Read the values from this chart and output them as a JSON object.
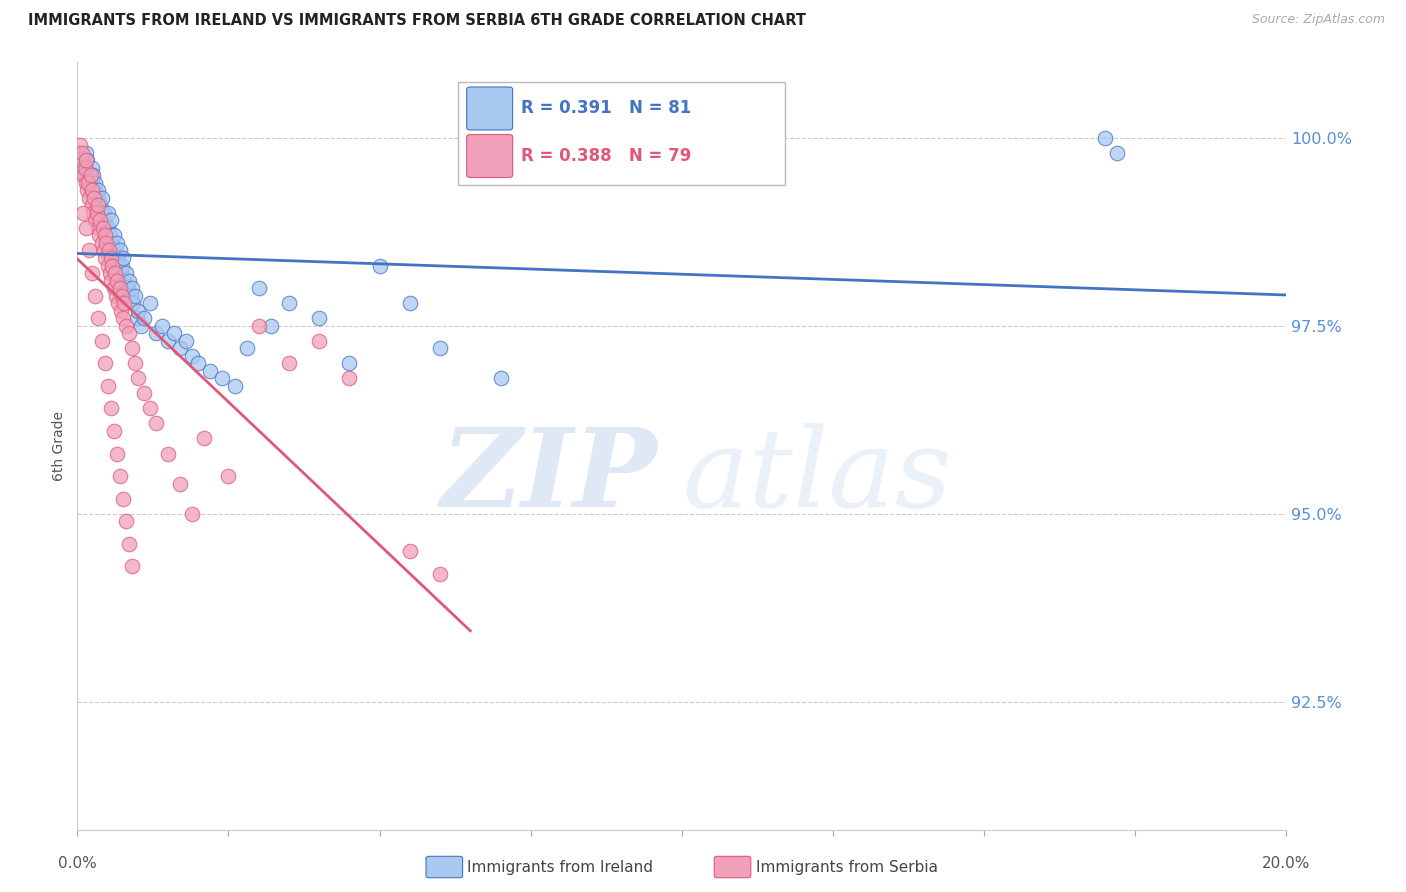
{
  "title": "IMMIGRANTS FROM IRELAND VS IMMIGRANTS FROM SERBIA 6TH GRADE CORRELATION CHART",
  "source": "Source: ZipAtlas.com",
  "ylabel": "6th Grade",
  "right_yticks": [
    92.5,
    95.0,
    97.5,
    100.0
  ],
  "right_ytick_labels": [
    "92.5%",
    "95.0%",
    "97.5%",
    "100.0%"
  ],
  "xlim": [
    0.0,
    20.0
  ],
  "ylim": [
    90.8,
    101.0
  ],
  "ireland_color": "#A8C8F0",
  "serbia_color": "#F0A0B8",
  "ireland_line_color": "#4472C4",
  "serbia_line_color": "#E05878",
  "watermark_zip_color": "#C5D8F0",
  "watermark_atlas_color": "#C5D8F0",
  "ireland_x": [
    0.05,
    0.08,
    0.1,
    0.12,
    0.14,
    0.15,
    0.16,
    0.18,
    0.2,
    0.22,
    0.24,
    0.25,
    0.26,
    0.28,
    0.3,
    0.3,
    0.32,
    0.34,
    0.35,
    0.36,
    0.38,
    0.4,
    0.4,
    0.42,
    0.44,
    0.45,
    0.46,
    0.48,
    0.5,
    0.5,
    0.52,
    0.54,
    0.55,
    0.56,
    0.58,
    0.6,
    0.62,
    0.64,
    0.65,
    0.66,
    0.68,
    0.7,
    0.72,
    0.74,
    0.75,
    0.78,
    0.8,
    0.82,
    0.85,
    0.88,
    0.9,
    0.92,
    0.95,
    0.98,
    1.0,
    1.05,
    1.1,
    1.2,
    1.3,
    1.4,
    1.5,
    1.6,
    1.7,
    1.8,
    1.9,
    2.0,
    2.2,
    2.4,
    2.6,
    2.8,
    3.0,
    3.2,
    3.5,
    4.0,
    4.5,
    5.0,
    5.5,
    6.0,
    7.0,
    17.0,
    17.2
  ],
  "ireland_y": [
    99.8,
    99.6,
    99.7,
    99.5,
    99.8,
    99.6,
    99.7,
    99.4,
    99.5,
    99.3,
    99.6,
    99.4,
    99.5,
    99.2,
    99.3,
    99.4,
    99.1,
    99.2,
    99.3,
    99.0,
    99.1,
    99.0,
    99.2,
    98.9,
    99.0,
    98.8,
    98.9,
    98.7,
    98.8,
    99.0,
    98.6,
    98.7,
    98.9,
    98.5,
    98.6,
    98.7,
    98.5,
    98.4,
    98.6,
    98.3,
    98.4,
    98.5,
    98.2,
    98.3,
    98.4,
    98.1,
    98.2,
    98.0,
    98.1,
    97.9,
    98.0,
    97.8,
    97.9,
    97.6,
    97.7,
    97.5,
    97.6,
    97.8,
    97.4,
    97.5,
    97.3,
    97.4,
    97.2,
    97.3,
    97.1,
    97.0,
    96.9,
    96.8,
    96.7,
    97.2,
    98.0,
    97.5,
    97.8,
    97.6,
    97.0,
    98.3,
    97.8,
    97.2,
    96.8,
    100.0,
    99.8
  ],
  "serbia_x": [
    0.04,
    0.06,
    0.08,
    0.1,
    0.12,
    0.14,
    0.15,
    0.16,
    0.18,
    0.2,
    0.22,
    0.24,
    0.25,
    0.26,
    0.28,
    0.3,
    0.32,
    0.34,
    0.35,
    0.36,
    0.38,
    0.4,
    0.42,
    0.44,
    0.45,
    0.46,
    0.48,
    0.5,
    0.52,
    0.54,
    0.55,
    0.56,
    0.58,
    0.6,
    0.62,
    0.64,
    0.65,
    0.68,
    0.7,
    0.72,
    0.74,
    0.75,
    0.78,
    0.8,
    0.85,
    0.9,
    0.95,
    1.0,
    1.1,
    1.2,
    1.3,
    1.5,
    1.7,
    1.9,
    2.1,
    2.5,
    3.0,
    3.5,
    4.0,
    4.5,
    0.1,
    0.15,
    0.2,
    0.25,
    0.3,
    0.35,
    0.4,
    0.45,
    0.5,
    0.55,
    0.6,
    0.65,
    0.7,
    0.75,
    0.8,
    0.85,
    0.9,
    5.5,
    6.0
  ],
  "serbia_y": [
    99.9,
    99.7,
    99.8,
    99.5,
    99.6,
    99.4,
    99.7,
    99.3,
    99.4,
    99.2,
    99.5,
    99.1,
    99.3,
    99.0,
    99.2,
    98.9,
    99.0,
    98.8,
    99.1,
    98.7,
    98.9,
    98.6,
    98.8,
    98.5,
    98.7,
    98.4,
    98.6,
    98.3,
    98.5,
    98.2,
    98.4,
    98.1,
    98.3,
    98.0,
    98.2,
    97.9,
    98.1,
    97.8,
    98.0,
    97.7,
    97.9,
    97.6,
    97.8,
    97.5,
    97.4,
    97.2,
    97.0,
    96.8,
    96.6,
    96.4,
    96.2,
    95.8,
    95.4,
    95.0,
    96.0,
    95.5,
    97.5,
    97.0,
    97.3,
    96.8,
    99.0,
    98.8,
    98.5,
    98.2,
    97.9,
    97.6,
    97.3,
    97.0,
    96.7,
    96.4,
    96.1,
    95.8,
    95.5,
    95.2,
    94.9,
    94.6,
    94.3,
    94.5,
    94.2
  ]
}
